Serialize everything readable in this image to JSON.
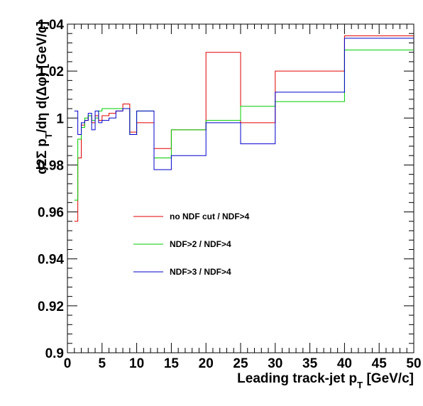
{
  "chart_data": {
    "type": "line",
    "xlabel": "Leading track-jet p_T [GeV/c]",
    "ylabel": "d2Σ p_T/dη d(Δφ) [GeV/c]",
    "xlim": [
      0,
      50
    ],
    "ylim": [
      0.9,
      1.04
    ],
    "xticks": [
      0,
      5,
      10,
      15,
      20,
      25,
      30,
      35,
      40,
      45,
      50
    ],
    "yticks": [
      0.9,
      0.92,
      0.94,
      0.96,
      0.98,
      1,
      1.02,
      1.04
    ],
    "ytick_labels": [
      "0.9",
      "0.92",
      "0.94",
      "0.96",
      "0.98",
      "1",
      "1.02",
      "1.04"
    ],
    "legend_position": "middle-left",
    "series": [
      {
        "name": "no NDF cut / NDF>4",
        "color": "#e00000",
        "bin_edges": [
          1,
          1.5,
          2,
          2.5,
          3,
          3.5,
          4,
          4.5,
          5,
          6,
          7,
          8,
          9,
          10,
          12.5,
          15,
          20,
          25,
          30,
          40,
          50
        ],
        "values": [
          0.956,
          0.983,
          0.997,
          0.999,
          1.001,
          0.998,
          1.001,
          0.999,
          1.001,
          1.002,
          1.003,
          1.006,
          0.994,
          0.998,
          0.987,
          0.995,
          1.028,
          0.998,
          1.02,
          1.035
        ]
      },
      {
        "name": "NDF>2 / NDF>4",
        "color": "#00cc00",
        "bin_edges": [
          1,
          1.5,
          2,
          2.5,
          3,
          3.5,
          4,
          4.5,
          5,
          6,
          7,
          8,
          9,
          10,
          12.5,
          15,
          20,
          25,
          30,
          40,
          50
        ],
        "values": [
          0.965,
          0.991,
          0.996,
          1.0,
          1.001,
          0.999,
          1.0,
          1.003,
          1.004,
          1.004,
          1.004,
          1.004,
          0.993,
          1.003,
          0.983,
          0.995,
          0.999,
          1.005,
          1.007,
          1.029
        ]
      },
      {
        "name": "NDF>3 / NDF>4",
        "color": "#0000cc",
        "bin_edges": [
          1,
          1.5,
          2,
          2.5,
          3,
          3.5,
          4,
          4.5,
          5,
          6,
          7,
          8,
          9,
          10,
          12.5,
          15,
          20,
          25,
          30,
          40,
          50
        ],
        "values": [
          1.003,
          0.993,
          0.998,
          0.999,
          1.002,
          0.995,
          1.003,
          0.998,
          0.999,
          1.0,
          1.003,
          1.004,
          0.993,
          1.003,
          0.978,
          0.984,
          0.998,
          0.989,
          1.011,
          1.034
        ]
      }
    ]
  }
}
